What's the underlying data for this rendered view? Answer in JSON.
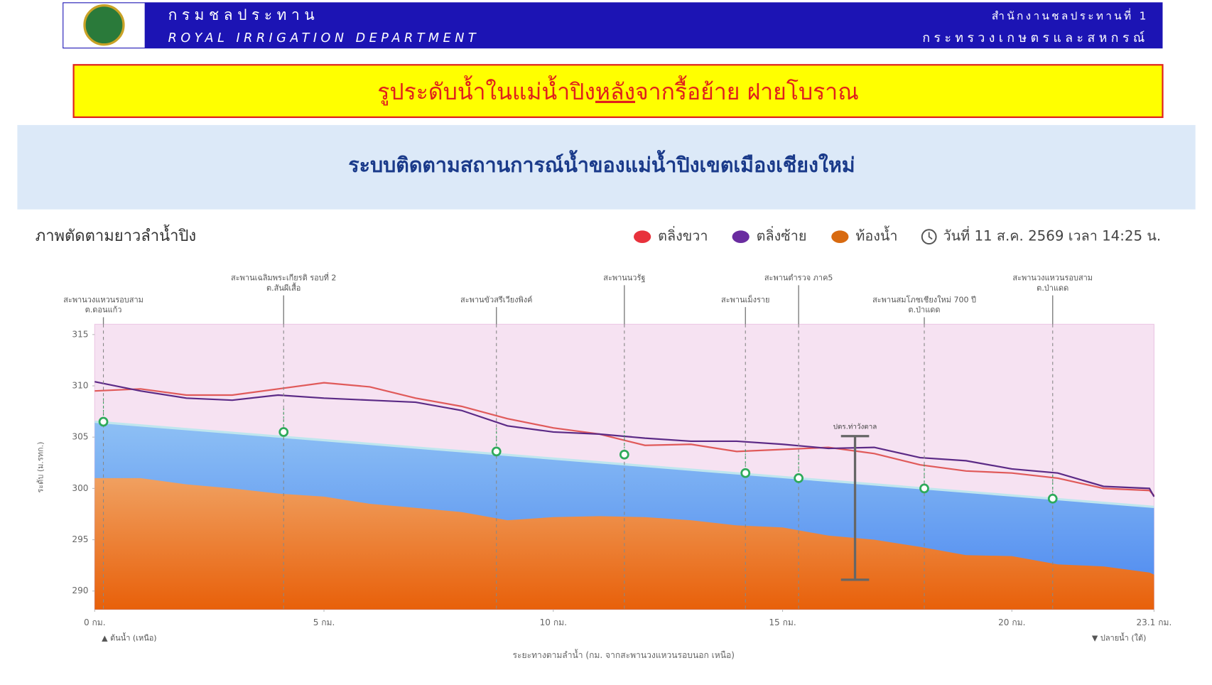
{
  "header": {
    "title_th": "กรมชลประทาน",
    "title_en": "ROYAL IRRIGATION DEPARTMENT",
    "office": "สำนักงานชลประทานที่ 1",
    "ministry": "กระทรวงเกษตรและสหกรณ์"
  },
  "banner": {
    "parts": [
      "รูประดับน้ำในแม่น้ำปิง",
      "หลัง",
      "จากรื้อย้าย ฝายโบราณ"
    ]
  },
  "panel_title": "ระบบติดตามสถานการณ์น้ำของแม่น้ำปิงเขตเมืองเชียงใหม่",
  "chart_data": {
    "type": "line",
    "title": "ภาพตัดตามยาวลำน้ำปิง",
    "timestamp": "วันที่ 11 ส.ค. 2569 เวลา 14:25 น.",
    "y_label": "ระดับ (ม.รทก.)",
    "x_label": "ระยะทางตามลำน้ำ (กม. จากสะพานวงแหวนรอบนอก เหนือ)",
    "x_start_note": "▲ ต้นน้ำ (เหนือ)",
    "x_end_note": "▼ ปลายน้ำ (ใต้)",
    "xlim": [
      0,
      23.1
    ],
    "xticks": [
      {
        "value": 0,
        "label": "0 กม."
      },
      {
        "value": 5,
        "label": "5 กม."
      },
      {
        "value": 10,
        "label": "10 กม."
      },
      {
        "value": 15,
        "label": "15 กม."
      },
      {
        "value": 20,
        "label": "20 กม."
      },
      {
        "value": 23.1,
        "label": "23.1 กม."
      }
    ],
    "ylim": [
      288.2,
      316
    ],
    "yticks": [
      290,
      295,
      300,
      305,
      310,
      315
    ],
    "grid": false,
    "x": [
      0,
      1,
      2,
      3,
      4,
      5,
      6,
      7,
      8,
      9,
      10,
      11,
      12,
      13,
      14,
      15,
      16,
      17,
      18,
      19,
      20,
      21,
      22,
      23,
      23.1
    ],
    "series": [
      {
        "name": "ตลิ่งขวา",
        "color": "#e05a5a",
        "legend_color": "#e8323c",
        "values": [
          309.5,
          309.7,
          309.1,
          309.1,
          309.7,
          310.3,
          309.9,
          308.8,
          308,
          306.8,
          305.9,
          305.3,
          304.2,
          304.3,
          303.6,
          303.8,
          304,
          303.4,
          302.3,
          301.7,
          301.5,
          301,
          300,
          299.8,
          299.3
        ]
      },
      {
        "name": "ตลิ่งซ้าย",
        "color": "#5b2a86",
        "legend_color": "#6a2ca0",
        "values": [
          310.4,
          309.5,
          308.8,
          308.6,
          309.1,
          308.8,
          308.6,
          308.4,
          307.6,
          306.1,
          305.5,
          305.3,
          304.9,
          304.6,
          304.6,
          304.3,
          303.9,
          304,
          303,
          302.7,
          301.9,
          301.5,
          300.2,
          300,
          299.2
        ]
      },
      {
        "name": "ท้องน้ำ",
        "color": "#e8751a",
        "legend_color": "#d86a10",
        "area": true,
        "values": [
          301,
          301,
          300.4,
          300,
          299.5,
          299.2,
          298.5,
          298.1,
          297.7,
          296.9,
          297.2,
          297.3,
          297.2,
          296.9,
          296.4,
          296.2,
          295.4,
          295,
          294.3,
          293.5,
          293.4,
          292.6,
          292.4,
          291.8,
          291.6
        ]
      }
    ],
    "water_surface": {
      "x": [
        0,
        23.1
      ],
      "values": [
        306.5,
        298.2
      ],
      "color": "#bfe6ee"
    },
    "bridges": [
      {
        "label": [
          "สะพานวงแหวนรอบสาม",
          "ต.ดอนแก้ว"
        ],
        "x": 0.19,
        "water_level": 306.5,
        "tier": "low"
      },
      {
        "label": [
          "สะพานเฉลิมพระเกียรติ รอบที่ 2",
          "ต.สันผีเสื้อ"
        ],
        "x": 4.12,
        "water_level": 305.5,
        "tier": "high"
      },
      {
        "label": [
          "สะพานขัวสรีเวียงพิงค์"
        ],
        "x": 8.76,
        "water_level": 303.6,
        "tier": "low"
      },
      {
        "label": [
          "สะพานนวรัฐ"
        ],
        "x": 11.55,
        "water_level": 303.3,
        "tier": "high"
      },
      {
        "label": [
          "สะพานเม็งราย"
        ],
        "x": 14.19,
        "water_level": 301.5,
        "tier": "low"
      },
      {
        "label": [
          "สะพานตำรวจ ภาค5"
        ],
        "x": 15.35,
        "water_level": 301,
        "tier": "high"
      },
      {
        "label": [
          "สะพานสมโภชเชียงใหม่ 700 ปี",
          "ต.ป่าแดด"
        ],
        "x": 18.09,
        "water_level": 300,
        "tier": "low"
      },
      {
        "label": [
          "สะพานวงแหวนรอบสาม",
          "ต.ป่าแดด"
        ],
        "x": 20.89,
        "water_level": 299,
        "tier": "high"
      }
    ],
    "gauge": {
      "label": "ปตร.ท่าวังตาล",
      "x": 16.58,
      "top": 305.1,
      "bottom": 291.1
    }
  }
}
